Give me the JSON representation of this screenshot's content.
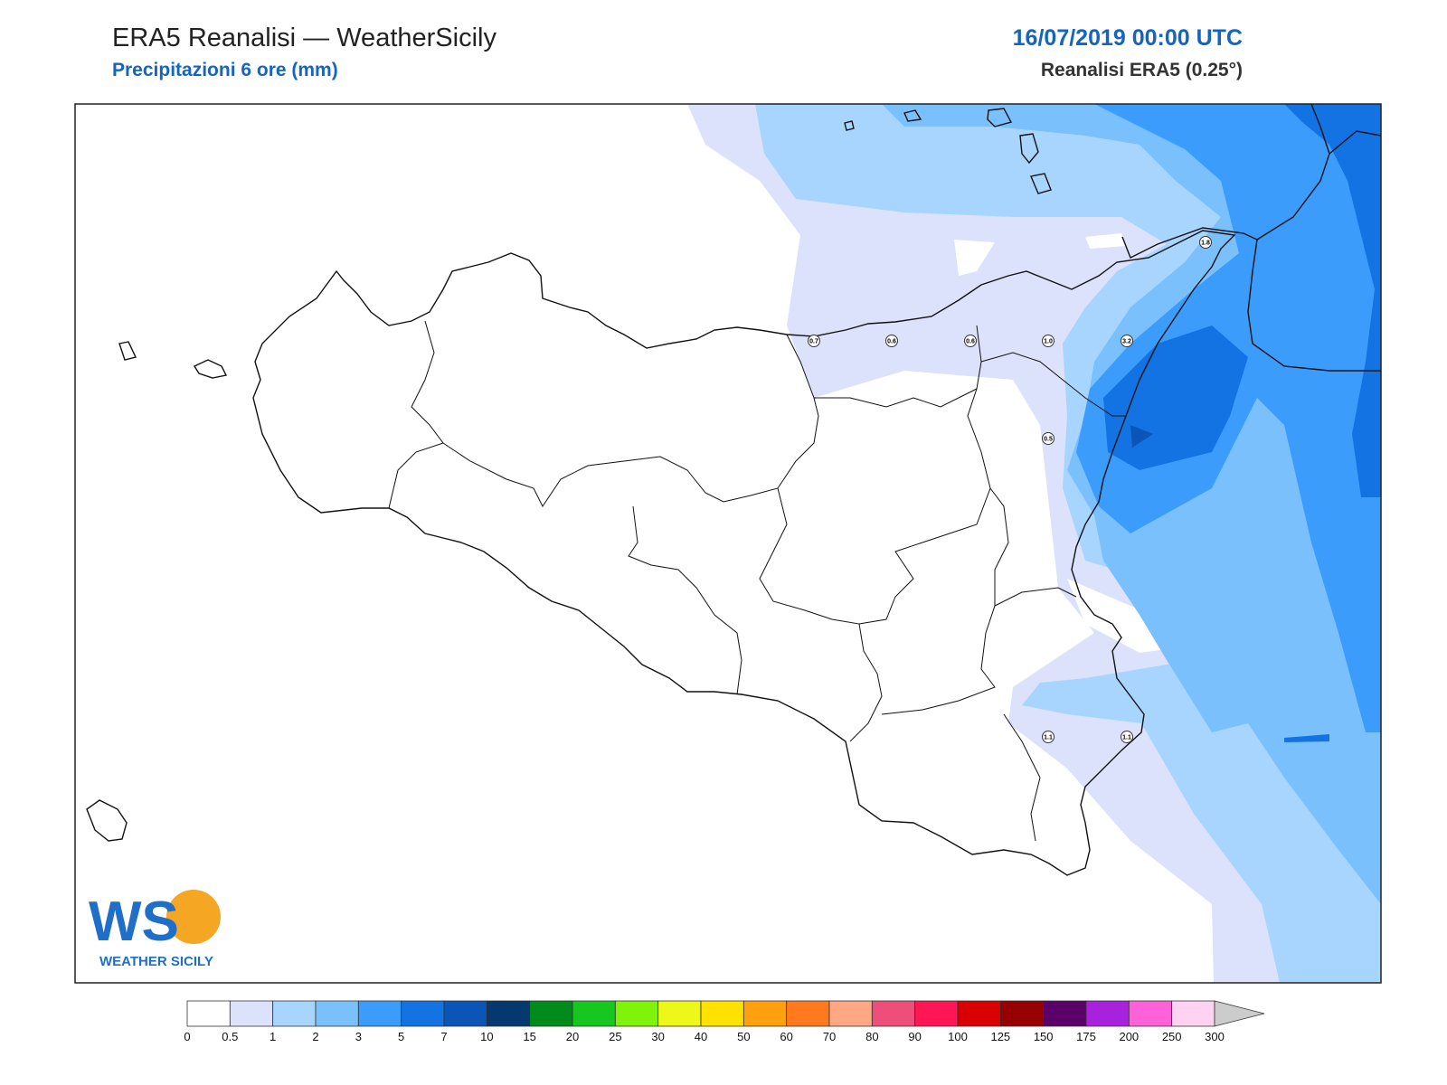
{
  "header": {
    "title": "ERA5 Reanalisi — WeatherSicily",
    "subtitle": "Precipitazioni 6 ore (mm)",
    "date": "16/07/2019 00:00 UTC",
    "model": "Reanalisi ERA5 (0.25°)"
  },
  "logo": {
    "text": "WEATHER SICILY",
    "letters": "WS"
  },
  "station_values": [
    "1.8",
    "0.7",
    "0.6",
    "0.6",
    "1.0",
    "3.2",
    "0.5",
    "1.1",
    "1.1"
  ],
  "legend": {
    "ticks": [
      "0",
      "0.5",
      "1",
      "2",
      "3",
      "5",
      "7",
      "10",
      "15",
      "20",
      "25",
      "30",
      "40",
      "50",
      "60",
      "70",
      "80",
      "90",
      "100",
      "125",
      "150",
      "175",
      "200",
      "250",
      "300"
    ],
    "colors": [
      "#ffffff",
      "#dde2fc",
      "#a8d5fe",
      "#79c0fd",
      "#3b9cfb",
      "#1373e3",
      "#0b55b6",
      "#05386f",
      "#008c1a",
      "#15c71f",
      "#7ff30a",
      "#eef71a",
      "#ffe200",
      "#ffa10f",
      "#ff7a1e",
      "#ffa883",
      "#ee4f7a",
      "#ff1654",
      "#d90000",
      "#960000",
      "#5c0069",
      "#a822dd",
      "#ff62d8",
      "#ffd2f1"
    ],
    "overflow_color": "#cccccc"
  }
}
